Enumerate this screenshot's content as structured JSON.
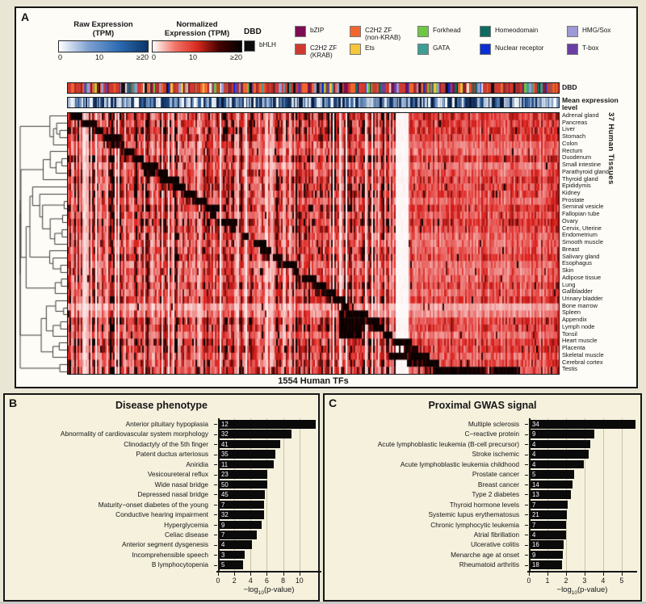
{
  "panels": {
    "a": "A",
    "b": "B",
    "c": "C"
  },
  "legend": {
    "raw": {
      "title_line1": "Raw Expression",
      "title_line2": "(TPM)",
      "stops": [
        "#ffffff",
        "#7e9fd0",
        "#2e6db4",
        "#0b3668"
      ],
      "ticks": [
        "0",
        "10",
        "≥20"
      ]
    },
    "norm": {
      "title_line1": "Normalized",
      "title_line2": "Expression (TPM)",
      "stops": [
        "#ffffff",
        "#f2766a",
        "#d92a1f",
        "#450000",
        "#000000"
      ],
      "ticks": [
        "0",
        "10",
        "≥20"
      ]
    },
    "dbd": {
      "title": "DBD",
      "columns": [
        [
          {
            "label": "bHLH",
            "color": "#0b0b0b"
          }
        ],
        [
          {
            "label": "bZIP",
            "color": "#7d0d52"
          },
          {
            "label": "C2H2 ZF",
            "label2": "(KRAB)",
            "color": "#cf3a30"
          }
        ],
        [
          {
            "label": "C2H2 ZF",
            "label2": "(non-KRAB)",
            "color": "#f2662e"
          },
          {
            "label": "Ets",
            "color": "#f5c53a"
          }
        ],
        [
          {
            "label": "Forkhead",
            "color": "#6ec843"
          },
          {
            "label": "GATA",
            "color": "#3d9e94"
          }
        ],
        [
          {
            "label": "Homeodomain",
            "color": "#0d6b60"
          },
          {
            "label": "Nuclear receptor",
            "color": "#0b2fd4"
          }
        ],
        [
          {
            "label": "HMG/Sox",
            "color": "#9d99d6"
          },
          {
            "label": "T-box",
            "color": "#6a3fa3"
          }
        ]
      ]
    }
  },
  "heatmap_labels": {
    "dbd": "DBD",
    "mean_expr_line1": "Mean expression",
    "mean_expr_line2": "level",
    "rows": "37 Human Tissues",
    "cols": "1554 Human TFs"
  },
  "axis_label": {
    "prefix": "−log",
    "sub": "10",
    "suffix": "(p-value)"
  },
  "chart_data": [
    {
      "id": "tissue_tf_heatmap",
      "type": "heatmap",
      "n_rows": 37,
      "n_cols": 1554,
      "rows_label": "37 Human Tissues",
      "cols_label": "1554 Human TFs",
      "row_names": [
        "Adrenal gland",
        "Pancreas",
        "Liver",
        "Stomach",
        "Colon",
        "Rectum",
        "Duodenum",
        "Small intestine",
        "Parathyroid gland",
        "Thyroid gland",
        "Epididymis",
        "Kidney",
        "Prostate",
        "Seminal vesicle",
        "Fallopian tube",
        "Ovary",
        "Cervix, Uterine",
        "Endometrium",
        "Smooth muscle",
        "Breast",
        "Salivary gland",
        "Esophagus",
        "Skin",
        "Adipose tissue",
        "Lung",
        "Gallbladder",
        "Urinary bladder",
        "Bone marrow",
        "Spleen",
        "Appendix",
        "Lymph node",
        "Tonsil",
        "Heart muscle",
        "Placenta",
        "Skeletal muscle",
        "Cerebral cortex",
        "Testis"
      ],
      "value_scale": {
        "name": "Normalized Expression (TPM)",
        "ticks": [
          "0",
          "10",
          "≥20"
        ],
        "stops": [
          "#ffffff",
          "#d92a1f",
          "#000000"
        ]
      },
      "annotation_rows": [
        "DBD",
        "Mean expression level"
      ],
      "pattern_note": "tissue-specific TF clusters form near-black diagonal blocks over a pink/red background; white low-expression column band at ~80% width; rightmost block uniformly pink-red"
    },
    {
      "id": "disease_phenotype",
      "type": "bar",
      "orientation": "horizontal",
      "title": "Disease phenotype",
      "xlabel": "-log10(p-value)",
      "xlim": [
        0,
        12.5
      ],
      "xticks": [
        0,
        2,
        4,
        6,
        8,
        10
      ],
      "grid": true,
      "categories": [
        "Anterior pituitary hypoplasia",
        "Abnormality of cardiovascular system morphology",
        "Clinodactyly of the 5th finger",
        "Patent ductus arteriosus",
        "Aniridia",
        "Vesicoureteral reflux",
        "Wide nasal bridge",
        "Depressed nasal bridge",
        "Maturity−onset diabetes of the young",
        "Conductive hearing impairment",
        "Hyperglycemia",
        "Celiac disease",
        "Anterior segment dysgenesis",
        "Incomprehensible speech",
        "B lymphocytopenia"
      ],
      "values": [
        11.9,
        8.9,
        7.5,
        6.9,
        6.7,
        6.0,
        6.0,
        5.7,
        5.6,
        5.6,
        5.3,
        4.7,
        4.1,
        3.2,
        3.0
      ],
      "counts": [
        12,
        32,
        41,
        35,
        11,
        23,
        50,
        45,
        7,
        32,
        9,
        7,
        4,
        3,
        5
      ]
    },
    {
      "id": "proximal_gwas_signal",
      "type": "bar",
      "orientation": "horizontal",
      "title": "Proximal GWAS signal",
      "xlabel": "-log10(p-value)",
      "xlim": [
        0,
        5.75
      ],
      "xticks": [
        0,
        1,
        2,
        3,
        4,
        5
      ],
      "grid": true,
      "categories": [
        "Multiple sclerosis",
        "C−reactive protein",
        "Acute lymphoblastic leukemia (B-cell precursor)",
        "Stroke ischemic",
        "Acute lymphoblastic leukemia childhood",
        "Prostate cancer",
        "Breast cancer",
        "Type 2 diabetes",
        "Thyroid hormone levels",
        "Systemic lupus erythematosus",
        "Chronic lymphocytic leukemia",
        "Atrial fibrillation",
        "Ulcerative colitis",
        "Menarche age at onset",
        "Rheumatoid arthritis"
      ],
      "values": [
        5.7,
        3.5,
        3.25,
        3.2,
        2.9,
        2.4,
        2.3,
        2.2,
        2.05,
        2.0,
        1.97,
        1.96,
        1.83,
        1.78,
        1.74
      ],
      "counts": [
        34,
        9,
        4,
        4,
        4,
        5,
        14,
        13,
        7,
        21,
        7,
        4,
        16,
        9,
        18
      ]
    }
  ]
}
